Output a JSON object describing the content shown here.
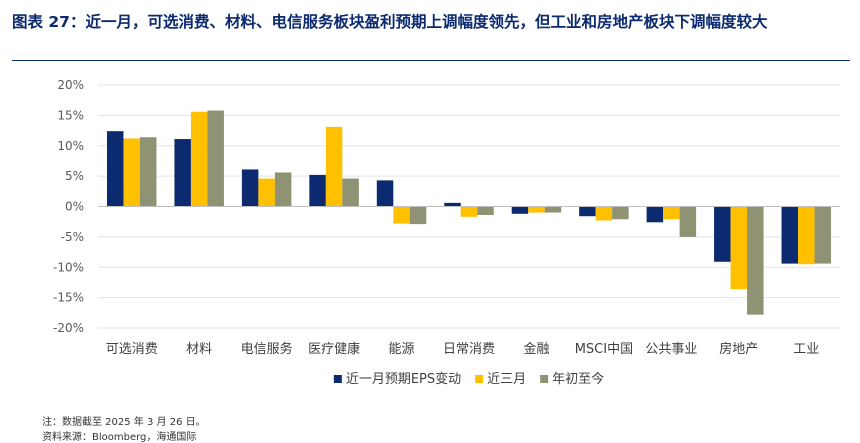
{
  "figure": {
    "title": "图表 27：近一月，可选消费、材料、电信服务板块盈利预期上调幅度领先，但工业和房地产板块下调幅度较大",
    "note": "注：数据截至 2025 年 3 月 26 日。",
    "source": "资料来源：Bloomberg，海通国际"
  },
  "chart_data": {
    "type": "bar",
    "title": "",
    "xlabel": "",
    "ylabel": "",
    "ylim": [
      -20,
      20
    ],
    "yticks": [
      20,
      15,
      10,
      5,
      0,
      -5,
      -10,
      -15,
      -20
    ],
    "ytick_labels": [
      "20%",
      "15%",
      "10%",
      "5%",
      "0%",
      "-5%",
      "-10%",
      "-15%",
      "-20%"
    ],
    "grid": true,
    "legend_position": "bottom",
    "categories": [
      "可选消费",
      "材料",
      "电信服务",
      "医疗健康",
      "能源",
      "日常消费",
      "金融",
      "MSCI中国",
      "公共事业",
      "房地产",
      "工业"
    ],
    "series": [
      {
        "name": "近一月预期EPS变动",
        "color": "#0b2a6f",
        "values": [
          12.4,
          11.1,
          6.1,
          5.2,
          4.3,
          0.6,
          -1.2,
          -1.6,
          -2.6,
          -9.1,
          -9.4
        ]
      },
      {
        "name": "近三月",
        "color": "#ffc000",
        "values": [
          11.2,
          15.6,
          4.6,
          13.1,
          -2.8,
          -1.7,
          -1.0,
          -2.3,
          -2.1,
          -13.6,
          -9.5
        ]
      },
      {
        "name": "年初至今",
        "color": "#8f9374",
        "values": [
          11.4,
          15.8,
          5.6,
          4.6,
          -2.9,
          -1.4,
          -1.0,
          -2.1,
          -5.0,
          -17.8,
          -9.4
        ]
      }
    ]
  }
}
